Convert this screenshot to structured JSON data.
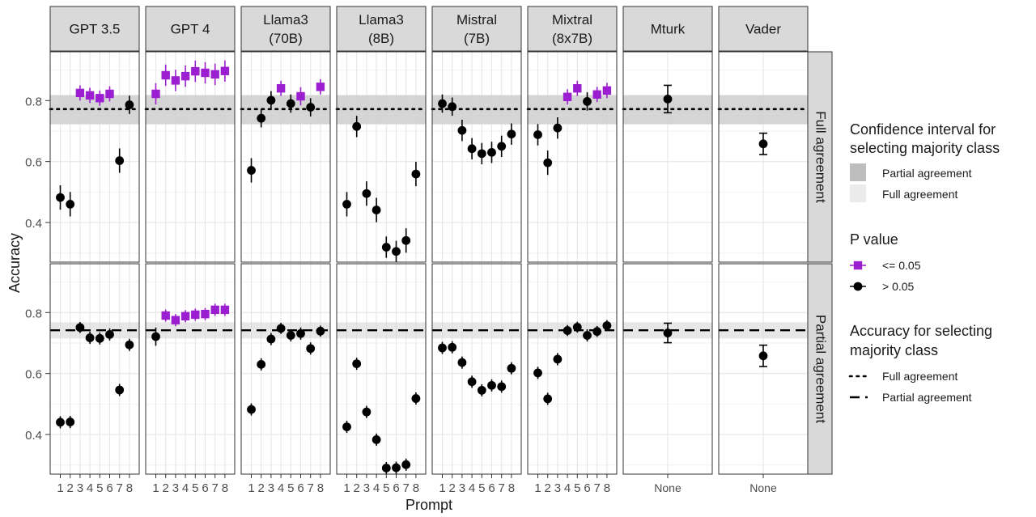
{
  "chart_data": {
    "type": "scatter",
    "panels": [
      "GPT 3.5",
      "GPT 4",
      "Llama3\n(70B)",
      "Llama3\n(8B)",
      "Mistral\n(7B)",
      "Mixtral\n(8x7B)",
      "Mturk",
      "Vader"
    ],
    "rows": [
      "Full agreement",
      "Partial agreement"
    ],
    "xlabel": "Prompt",
    "ylabel": "Accuracy",
    "x_ticks_prompts": [
      "1",
      "2",
      "3",
      "4",
      "5",
      "6",
      "7",
      "8"
    ],
    "x_ticks_none": [
      "None"
    ],
    "ylim": [
      0.27,
      0.96
    ],
    "y_ticks": [
      0.4,
      0.6,
      0.8
    ],
    "y_tick_labels": [
      "0.4",
      "0.6",
      "0.8"
    ],
    "reference_lines": {
      "Full agreement": {
        "value": 0.772,
        "ci": [
          0.722,
          0.818
        ],
        "style": "dotted"
      },
      "Partial agreement": {
        "value": 0.742,
        "ci": [
          0.715,
          0.768
        ],
        "style": "dashed"
      }
    },
    "legend": {
      "ci_title": "Confidence interval for\nselecting majority class",
      "ci_items": [
        {
          "label": "Partial agreement",
          "color": "#bdbdbd"
        },
        {
          "label": "Full agreement",
          "color": "#ebebeb"
        }
      ],
      "p_title": "P value",
      "p_items": [
        {
          "label": "<= 0.05",
          "color": "#9b1fd1",
          "shape": "square"
        },
        {
          "label": "> 0.05",
          "color": "#000000",
          "shape": "circle"
        }
      ],
      "acc_title": "Accuracy for selecting\nmajority class",
      "acc_items": [
        {
          "label": "Full agreement",
          "style": "dotted"
        },
        {
          "label": "Partial agreement",
          "style": "dashed"
        }
      ]
    },
    "colors": {
      "significant": "#9b1fd1",
      "not_significant": "#000000",
      "strip": "#d9d9d9",
      "ci_band": "#d3d3d3"
    },
    "data": {
      "Full agreement": {
        "GPT 3.5": {
          "prompts": [
            1,
            2,
            3,
            4,
            5,
            6,
            7,
            8
          ],
          "y": [
            0.482,
            0.46,
            0.825,
            0.817,
            0.808,
            0.822,
            0.603,
            0.786
          ],
          "err": [
            0.04,
            0.04,
            0.025,
            0.025,
            0.025,
            0.025,
            0.04,
            0.03
          ],
          "sig": [
            false,
            false,
            true,
            true,
            true,
            true,
            false,
            false
          ]
        },
        "GPT 4": {
          "prompts": [
            1,
            2,
            3,
            4,
            5,
            6,
            7,
            8
          ],
          "y": [
            0.822,
            0.883,
            0.866,
            0.88,
            0.896,
            0.891,
            0.886,
            0.897
          ],
          "err": [
            0.035,
            0.035,
            0.035,
            0.035,
            0.035,
            0.035,
            0.035,
            0.035
          ],
          "sig": [
            true,
            true,
            true,
            true,
            true,
            true,
            true,
            true
          ]
        },
        "Llama3\n(70B)": {
          "prompts": [
            1,
            2,
            3,
            4,
            5,
            6,
            7,
            8
          ],
          "y": [
            0.571,
            0.742,
            0.801,
            0.84,
            0.79,
            0.814,
            0.778,
            0.845
          ],
          "err": [
            0.04,
            0.03,
            0.03,
            0.025,
            0.03,
            0.03,
            0.03,
            0.025
          ],
          "sig": [
            false,
            false,
            false,
            true,
            false,
            true,
            false,
            true
          ]
        },
        "Llama3\n(8B)": {
          "prompts": [
            1,
            2,
            3,
            4,
            5,
            6,
            7,
            8
          ],
          "y": [
            0.46,
            0.715,
            0.495,
            0.441,
            0.319,
            0.305,
            0.341,
            0.559
          ],
          "err": [
            0.04,
            0.035,
            0.04,
            0.04,
            0.035,
            0.035,
            0.04,
            0.04
          ],
          "sig": [
            false,
            false,
            false,
            false,
            false,
            false,
            false,
            false
          ]
        },
        "Mistral\n(7B)": {
          "prompts": [
            1,
            2,
            3,
            4,
            5,
            6,
            7,
            8
          ],
          "y": [
            0.79,
            0.78,
            0.702,
            0.642,
            0.626,
            0.63,
            0.65,
            0.69
          ],
          "err": [
            0.03,
            0.03,
            0.035,
            0.035,
            0.035,
            0.035,
            0.035,
            0.035
          ],
          "sig": [
            false,
            false,
            false,
            false,
            false,
            false,
            false,
            false
          ]
        },
        "Mixtral\n(8x7B)": {
          "prompts": [
            1,
            2,
            3,
            4,
            5,
            6,
            7,
            8
          ],
          "y": [
            0.688,
            0.596,
            0.71,
            0.812,
            0.84,
            0.797,
            0.82,
            0.833
          ],
          "err": [
            0.035,
            0.04,
            0.035,
            0.025,
            0.025,
            0.03,
            0.025,
            0.025
          ],
          "sig": [
            false,
            false,
            false,
            true,
            true,
            false,
            true,
            true
          ]
        },
        "Mturk": {
          "prompts": [
            "None"
          ],
          "y": [
            0.805
          ],
          "err": [
            0.045
          ],
          "sig": [
            false
          ]
        },
        "Vader": {
          "prompts": [
            "None"
          ],
          "y": [
            0.658
          ],
          "err": [
            0.035
          ],
          "sig": [
            false
          ]
        }
      },
      "Partial agreement": {
        "GPT 3.5": {
          "prompts": [
            1,
            2,
            3,
            4,
            5,
            6,
            7,
            8
          ],
          "y": [
            0.44,
            0.441,
            0.751,
            0.717,
            0.715,
            0.728,
            0.546,
            0.694
          ],
          "err": [
            0.02,
            0.02,
            0.018,
            0.02,
            0.02,
            0.02,
            0.02,
            0.02
          ],
          "sig": [
            false,
            false,
            false,
            false,
            false,
            false,
            false,
            false
          ]
        },
        "GPT 4": {
          "prompts": [
            1,
            2,
            3,
            4,
            5,
            6,
            7,
            8
          ],
          "y": [
            0.721,
            0.79,
            0.775,
            0.788,
            0.793,
            0.795,
            0.809,
            0.809
          ],
          "err": [
            0.03,
            0.02,
            0.02,
            0.02,
            0.02,
            0.02,
            0.02,
            0.02
          ],
          "sig": [
            false,
            true,
            true,
            true,
            true,
            true,
            true,
            true
          ]
        },
        "Llama3\n(70B)": {
          "prompts": [
            1,
            2,
            3,
            4,
            5,
            6,
            7,
            8
          ],
          "y": [
            0.482,
            0.63,
            0.713,
            0.748,
            0.725,
            0.731,
            0.682,
            0.739
          ],
          "err": [
            0.02,
            0.02,
            0.02,
            0.018,
            0.02,
            0.02,
            0.02,
            0.018
          ],
          "sig": [
            false,
            false,
            false,
            false,
            false,
            false,
            false,
            false
          ]
        },
        "Llama3\n(8B)": {
          "prompts": [
            1,
            2,
            3,
            4,
            5,
            6,
            7,
            8
          ],
          "y": [
            0.425,
            0.632,
            0.474,
            0.383,
            0.29,
            0.291,
            0.301,
            0.518
          ],
          "err": [
            0.02,
            0.02,
            0.02,
            0.02,
            0.02,
            0.02,
            0.02,
            0.02
          ],
          "sig": [
            false,
            false,
            false,
            false,
            false,
            false,
            false,
            false
          ]
        },
        "Mistral\n(7B)": {
          "prompts": [
            1,
            2,
            3,
            4,
            5,
            6,
            7,
            8
          ],
          "y": [
            0.684,
            0.686,
            0.636,
            0.573,
            0.545,
            0.561,
            0.557,
            0.617
          ],
          "err": [
            0.02,
            0.02,
            0.02,
            0.02,
            0.02,
            0.02,
            0.02,
            0.02
          ],
          "sig": [
            false,
            false,
            false,
            false,
            false,
            false,
            false,
            false
          ]
        },
        "Mixtral\n(8x7B)": {
          "prompts": [
            1,
            2,
            3,
            4,
            5,
            6,
            7,
            8
          ],
          "y": [
            0.602,
            0.517,
            0.647,
            0.741,
            0.752,
            0.725,
            0.738,
            0.757
          ],
          "err": [
            0.02,
            0.02,
            0.02,
            0.018,
            0.018,
            0.02,
            0.018,
            0.018
          ],
          "sig": [
            false,
            false,
            false,
            false,
            false,
            false,
            false,
            false
          ]
        },
        "Mturk": {
          "prompts": [
            "None"
          ],
          "y": [
            0.733
          ],
          "err": [
            0.032
          ],
          "sig": [
            false
          ]
        },
        "Vader": {
          "prompts": [
            "None"
          ],
          "y": [
            0.658
          ],
          "err": [
            0.035
          ],
          "sig": [
            false
          ]
        }
      }
    }
  }
}
